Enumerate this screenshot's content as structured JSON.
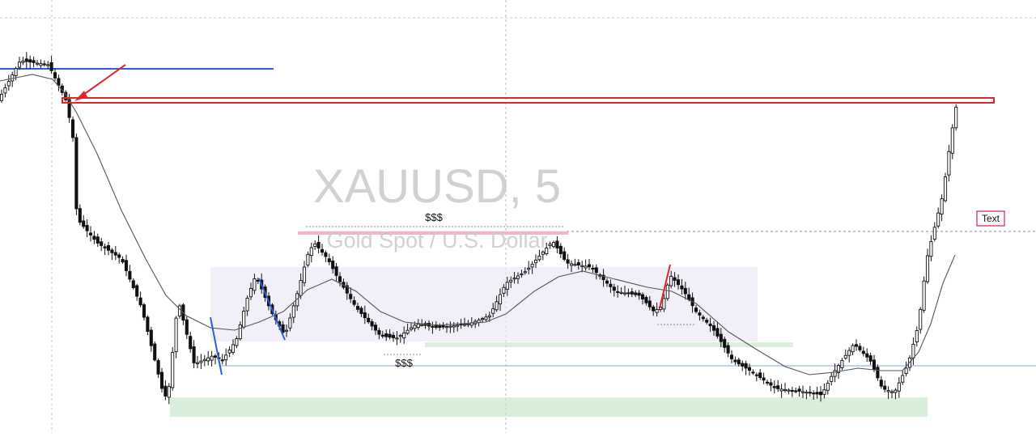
{
  "chart_data": {
    "type": "candlestick",
    "title": "XAUUSD, 5",
    "subtitle": "Gold Spot / U.S. Dollar",
    "annotations": {
      "liquidity_high_label": "$$$",
      "liquidity_low_label": "$$$",
      "text_box_label": "Text"
    },
    "colors": {
      "candle": "#111111",
      "moving_average": "#555555",
      "resistance_zone": "#e0262b",
      "demand_zone": "#bfe5c3",
      "range_box": "#ece6f6",
      "blue_line": "#2f5fd6",
      "arrow": "#e0262b",
      "watermark": "#c9c9c9",
      "high_marker": "#f4b6c6",
      "text_box_border": "#d0244e"
    },
    "grid": true,
    "legend": "none"
  }
}
